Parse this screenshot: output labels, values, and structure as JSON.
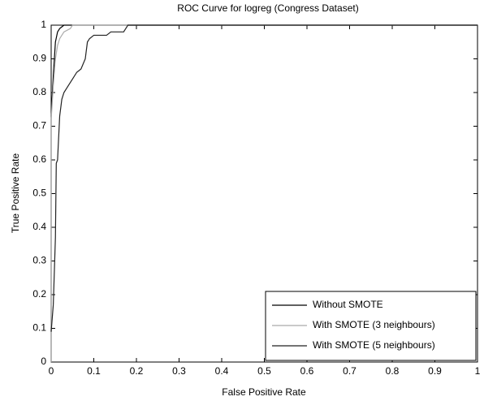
{
  "chart_data": {
    "type": "line",
    "title": "ROC Curve for logreg (Congress Dataset)",
    "x_label": "False Positive Rate",
    "y_label": "True Positive Rate",
    "xlim": [
      0,
      1
    ],
    "ylim": [
      0,
      1
    ],
    "xticks": [
      0,
      0.1,
      0.2,
      0.3,
      0.4,
      0.5,
      0.6,
      0.7,
      0.8,
      0.9,
      1
    ],
    "yticks": [
      0,
      0.1,
      0.2,
      0.3,
      0.4,
      0.5,
      0.6,
      0.7,
      0.8,
      0.9,
      1
    ],
    "grid": false,
    "legend": "lower right",
    "series": [
      {
        "name": "Without SMOTE",
        "color": "#000000",
        "x": [
          0,
          0,
          0.005,
          0.01,
          0.015,
          0.02,
          0.03,
          1
        ],
        "values": [
          0,
          0.73,
          0.85,
          0.95,
          0.98,
          0.99,
          1,
          1
        ]
      },
      {
        "name": "With SMOTE (3 neighbours)",
        "color": "#aaaaaa",
        "x": [
          0,
          0,
          0.005,
          0.01,
          0.015,
          0.02,
          0.03,
          0.045,
          0.05,
          1
        ],
        "values": [
          0,
          0.72,
          0.82,
          0.9,
          0.94,
          0.96,
          0.98,
          0.99,
          1,
          1
        ]
      },
      {
        "name": "With SMOTE (5 neighbours)",
        "color": "#222222",
        "x": [
          0,
          0.005,
          0.01,
          0.012,
          0.015,
          0.02,
          0.025,
          0.03,
          0.04,
          0.05,
          0.06,
          0.07,
          0.08,
          0.085,
          0.09,
          0.1,
          0.13,
          0.14,
          0.17,
          0.18,
          1
        ],
        "values": [
          0.09,
          0.17,
          0.37,
          0.59,
          0.6,
          0.73,
          0.78,
          0.8,
          0.82,
          0.84,
          0.86,
          0.87,
          0.9,
          0.95,
          0.96,
          0.97,
          0.97,
          0.98,
          0.98,
          1,
          1
        ]
      }
    ]
  }
}
